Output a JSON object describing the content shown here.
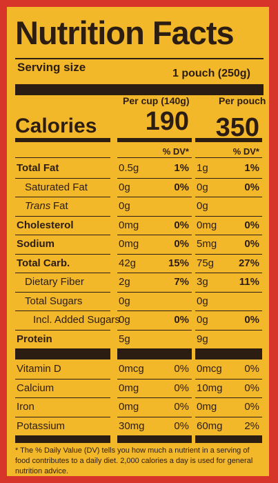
{
  "title": "Nutrition Facts",
  "serving": {
    "label": "Serving size",
    "value": "1 pouch (250g)"
  },
  "calories_label": "Calories",
  "columns": [
    {
      "header": "Per cup (140g)",
      "calories": "190",
      "dv_header": "% DV*"
    },
    {
      "header": "Per pouch",
      "calories": "350",
      "dv_header": "% DV*"
    }
  ],
  "rows": [
    {
      "name": "Total Fat",
      "bold": true,
      "indent": 0,
      "values": [
        [
          "0.5g",
          "1%"
        ],
        [
          "1g",
          "1%"
        ]
      ]
    },
    {
      "name": "Saturated Fat",
      "bold": false,
      "indent": 1,
      "values": [
        [
          "0g",
          "0%"
        ],
        [
          "0g",
          "0%"
        ]
      ]
    },
    {
      "name_italic": "Trans",
      "name": "Fat",
      "bold": false,
      "indent": 1,
      "values": [
        [
          "0g"
        ],
        [
          "0g"
        ]
      ]
    },
    {
      "name": "Cholesterol",
      "bold": true,
      "indent": 0,
      "values": [
        [
          "0mg",
          "0%"
        ],
        [
          "0mg",
          "0%"
        ]
      ]
    },
    {
      "name": "Sodium",
      "bold": true,
      "indent": 0,
      "values": [
        [
          "0mg",
          "0%"
        ],
        [
          "5mg",
          "0%"
        ]
      ]
    },
    {
      "name": "Total Carb.",
      "bold": true,
      "indent": 0,
      "values": [
        [
          "42g",
          "15%"
        ],
        [
          "75g",
          "27%"
        ]
      ]
    },
    {
      "name": "Dietary Fiber",
      "bold": false,
      "indent": 1,
      "values": [
        [
          "2g",
          "7%"
        ],
        [
          "3g",
          "11%"
        ]
      ]
    },
    {
      "name": "Total Sugars",
      "bold": false,
      "indent": 1,
      "values": [
        [
          "0g"
        ],
        [
          "0g"
        ]
      ]
    },
    {
      "name": "Incl. Added Sugars",
      "bold": false,
      "indent": 2,
      "values": [
        [
          "0g",
          "0%"
        ],
        [
          "0g",
          "0%"
        ]
      ]
    },
    {
      "name": "Protein",
      "bold": true,
      "indent": 0,
      "values": [
        [
          "5g"
        ],
        [
          "9g"
        ]
      ]
    }
  ],
  "vitamins": [
    {
      "name": "Vitamin D",
      "values": [
        [
          "0mcg",
          "0%"
        ],
        [
          "0mcg",
          "0%"
        ]
      ]
    },
    {
      "name": "Calcium",
      "values": [
        [
          "0mg",
          "0%"
        ],
        [
          "10mg",
          "0%"
        ]
      ]
    },
    {
      "name": "Iron",
      "values": [
        [
          "0mg",
          "0%"
        ],
        [
          "0mg",
          "0%"
        ]
      ]
    },
    {
      "name": "Potassium",
      "values": [
        [
          "30mg",
          "0%"
        ],
        [
          "60mg",
          "2%"
        ]
      ]
    }
  ],
  "footnote": "* The % Daily Value (DV) tells you how much a nutrient in a serving of food contributes to a daily diet. 2,000 calories a day is used for general nutrition advice."
}
